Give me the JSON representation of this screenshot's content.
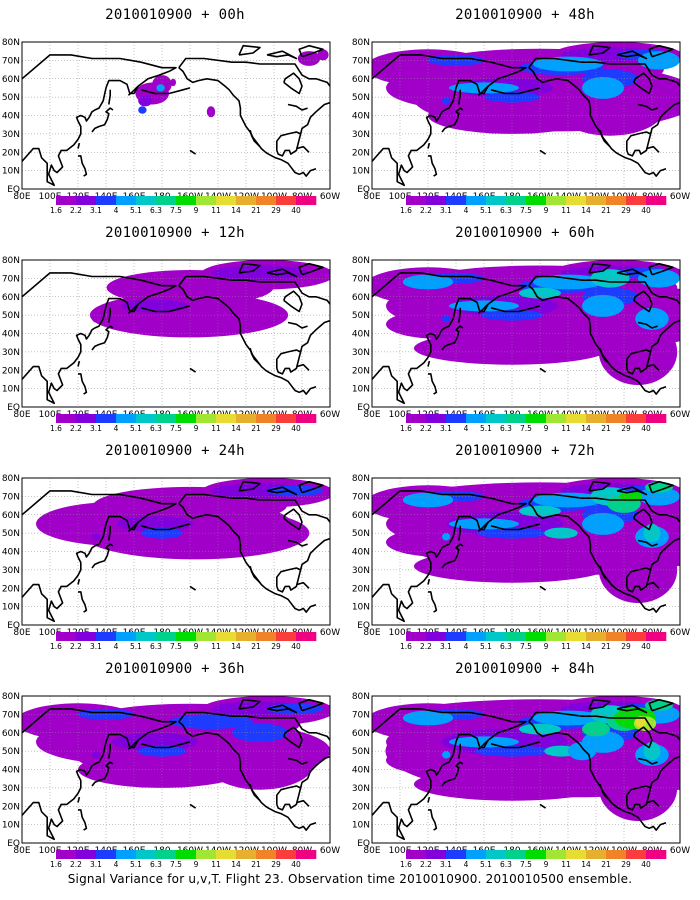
{
  "panels": [
    {
      "id": "p00",
      "title": "2010010900 + 00h",
      "lead_hours": 0
    },
    {
      "id": "p48",
      "title": "2010010900 + 48h",
      "lead_hours": 48
    },
    {
      "id": "p12",
      "title": "2010010900 + 12h",
      "lead_hours": 12
    },
    {
      "id": "p60",
      "title": "2010010900 + 60h",
      "lead_hours": 60
    },
    {
      "id": "p24",
      "title": "2010010900 + 24h",
      "lead_hours": 24
    },
    {
      "id": "p72",
      "title": "2010010900 + 72h",
      "lead_hours": 72
    },
    {
      "id": "p36",
      "title": "2010010900 + 36h",
      "lead_hours": 36
    },
    {
      "id": "p84",
      "title": "2010010900 + 84h",
      "lead_hours": 84
    }
  ],
  "map": {
    "lat_labels": [
      "80N",
      "70N",
      "60N",
      "50N",
      "40N",
      "30N",
      "20N",
      "10N",
      "EQ"
    ],
    "lon_labels": [
      "80E",
      "100E",
      "120E",
      "140E",
      "160E",
      "180",
      "160W",
      "140W",
      "120W",
      "100W",
      "80W",
      "60W"
    ]
  },
  "colorbar": {
    "labels": [
      "1.6",
      "2.2",
      "3.1",
      "4",
      "5.1",
      "6.3",
      "7.5",
      "9",
      "11",
      "14",
      "21",
      "29",
      "40"
    ],
    "colors": [
      "#a000c8",
      "#8200dc",
      "#1e3cff",
      "#00a0ff",
      "#00c8c8",
      "#00d28c",
      "#00dc00",
      "#a0e632",
      "#e6dc32",
      "#e6af2d",
      "#f08228",
      "#fa3c3c",
      "#f00082"
    ]
  },
  "caption": "Signal Variance for u,v,T. Flight 23. Observation time 2010010900. 2010010500 ensemble."
}
